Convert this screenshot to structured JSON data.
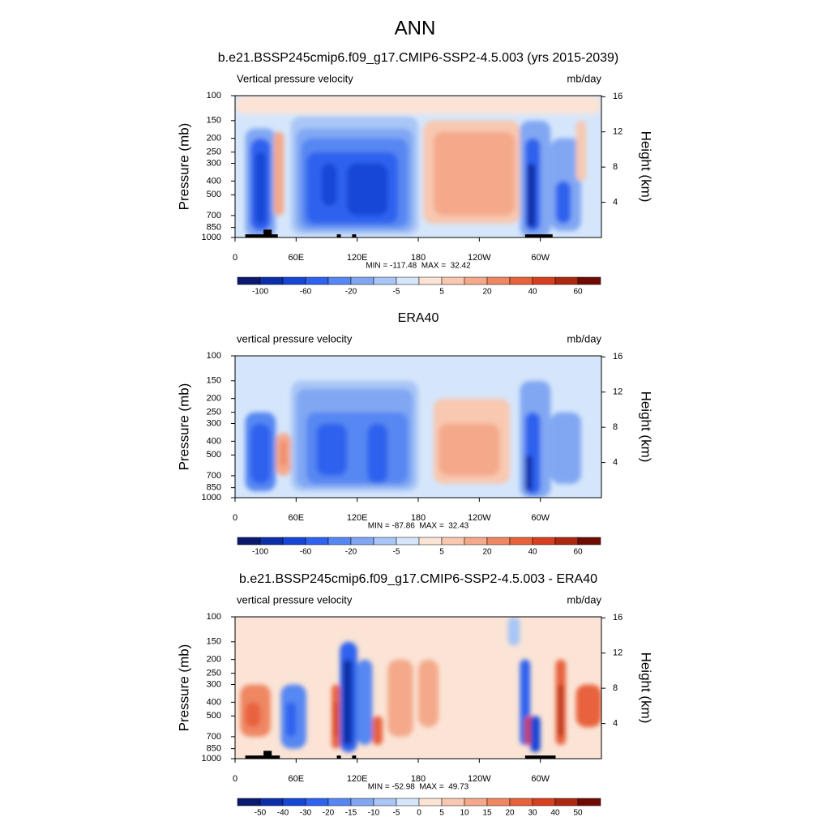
{
  "chart_data": {
    "type": "contour",
    "title": "ANN",
    "panels": [
      {
        "title": "b.e21.BSSP245cmip6.f09_g17.CMIP6-SSP2-4.5.003 (yrs 2015-2039)",
        "left_label": "Vertical pressure velocity",
        "right_label": "mb/day",
        "y_label": "Pressure (mb)",
        "y2_label": "Height (km)",
        "log_y": true,
        "xlim": [
          0,
          360
        ],
        "xticks": [
          0,
          {
            "value": 60,
            "label": "60E"
          },
          {
            "value": 120,
            "label": "120E"
          },
          180,
          {
            "value": 240,
            "label": "120W"
          },
          {
            "value": 300,
            "label": "60W"
          }
        ],
        "ylim": [
          1000,
          100
        ],
        "yticks": [
          100,
          150,
          200,
          250,
          300,
          400,
          500,
          700,
          850,
          1000
        ],
        "y2ticks": [
          4,
          8,
          12,
          16
        ],
        "stats": "MIN = -117.48  MAX =  32.42",
        "colorbar": {
          "colors": [
            "#0b1a6e",
            "#0c2fa8",
            "#1646d6",
            "#2f62ee",
            "#5787f2",
            "#81a7f3",
            "#a9c6f6",
            "#d5e6fb",
            "#fbe4d6",
            "#f8c8b1",
            "#f4a98a",
            "#ef8763",
            "#e8623c",
            "#d63f1f",
            "#ac2810",
            "#6e0c04"
          ],
          "labels": [
            -100,
            -60,
            -20,
            -5,
            5,
            20,
            40,
            60
          ]
        }
      },
      {
        "title": "ERA40",
        "left_label": "vertical pressure velocity",
        "right_label": "mb/day",
        "y_label": "Pressure (mb)",
        "y2_label": "Height (km)",
        "log_y": true,
        "xlim": [
          0,
          360
        ],
        "xticks": [
          0,
          {
            "value": 60,
            "label": "60E"
          },
          {
            "value": 120,
            "label": "120E"
          },
          180,
          {
            "value": 240,
            "label": "120W"
          },
          {
            "value": 300,
            "label": "60W"
          }
        ],
        "ylim": [
          1000,
          100
        ],
        "yticks": [
          100,
          150,
          200,
          250,
          300,
          400,
          500,
          700,
          850,
          1000
        ],
        "y2ticks": [
          4,
          8,
          12,
          16
        ],
        "stats": "MIN = -87.86  MAX =  32.43",
        "colorbar": {
          "colors": [
            "#0b1a6e",
            "#0c2fa8",
            "#1646d6",
            "#2f62ee",
            "#5787f2",
            "#81a7f3",
            "#a9c6f6",
            "#d5e6fb",
            "#fbe4d6",
            "#f8c8b1",
            "#f4a98a",
            "#ef8763",
            "#e8623c",
            "#d63f1f",
            "#ac2810",
            "#6e0c04"
          ],
          "labels": [
            -100,
            -60,
            -20,
            -5,
            5,
            20,
            40,
            60
          ]
        }
      },
      {
        "title": "b.e21.BSSP245cmip6.f09_g17.CMIP6-SSP2-4.5.003 - ERA40",
        "left_label": "vertical pressure velocity",
        "right_label": "mb/day",
        "y_label": "Pressure (mb)",
        "y2_label": "Height (km)",
        "log_y": true,
        "xlim": [
          0,
          360
        ],
        "xticks": [
          0,
          {
            "value": 60,
            "label": "60E"
          },
          {
            "value": 120,
            "label": "120E"
          },
          180,
          {
            "value": 240,
            "label": "120W"
          },
          {
            "value": 300,
            "label": "60W"
          }
        ],
        "ylim": [
          1000,
          100
        ],
        "yticks": [
          100,
          150,
          200,
          250,
          300,
          400,
          500,
          700,
          850,
          1000
        ],
        "y2ticks": [
          4,
          8,
          12,
          16
        ],
        "stats": "MIN = -52.98  MAX =  49.73",
        "colorbar": {
          "colors": [
            "#0b1a6e",
            "#0c2fa8",
            "#1646d6",
            "#2f62ee",
            "#5787f2",
            "#81a7f3",
            "#a9c6f6",
            "#d5e6fb",
            "#fbe4d6",
            "#f8c8b1",
            "#f4a98a",
            "#ef8763",
            "#e8623c",
            "#d63f1f",
            "#ac2810",
            "#6e0c04"
          ],
          "labels": [
            -50,
            -40,
            -30,
            -20,
            -15,
            -10,
            -5,
            0,
            5,
            10,
            15,
            20,
            30,
            40,
            50
          ]
        }
      }
    ]
  }
}
